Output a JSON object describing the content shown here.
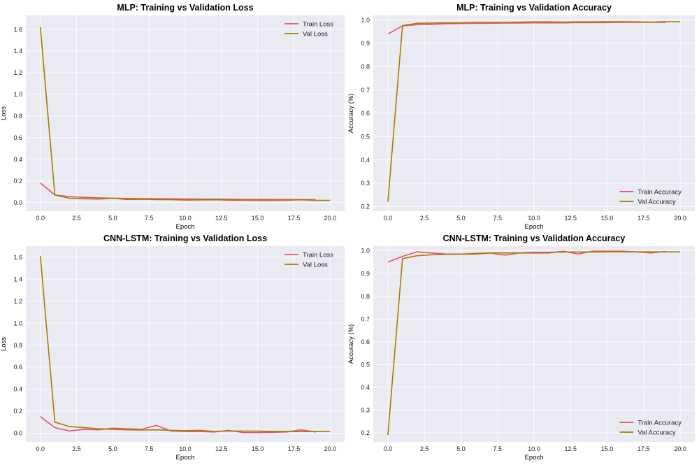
{
  "colors": {
    "background": "#ffffff",
    "panel": "#eaeaf2",
    "grid": "#ffffff",
    "train": "#e8526a",
    "val": "#a67c00"
  },
  "chart_data": [
    {
      "type": "line",
      "title": "MLP: Training vs Validation Loss",
      "xlabel": "Epoch",
      "ylabel": "Loss",
      "xlim": [
        -1,
        21
      ],
      "ylim": [
        -0.08,
        1.73
      ],
      "xticks": [
        0.0,
        2.5,
        5.0,
        7.5,
        10.0,
        12.5,
        15.0,
        17.5,
        20.0
      ],
      "xtick_labels": [
        "0.0",
        "2.5",
        "5.0",
        "7.5",
        "10.0",
        "12.5",
        "15.0",
        "17.5",
        "20.0"
      ],
      "yticks": [
        0.0,
        0.2,
        0.4,
        0.6,
        0.8,
        1.0,
        1.2,
        1.4,
        1.6
      ],
      "ytick_labels": [
        "0.0",
        "0.2",
        "0.4",
        "0.6",
        "0.8",
        "1.0",
        "1.2",
        "1.4",
        "1.6"
      ],
      "legend": "top-right",
      "grid": true,
      "series": [
        {
          "name": "Train Loss",
          "color_key": "train",
          "x": [
            0,
            1,
            2,
            3,
            4,
            5,
            6,
            7,
            8,
            9,
            10,
            11,
            12,
            13,
            14,
            15,
            16,
            17,
            18,
            19
          ],
          "values": [
            0.18,
            0.07,
            0.055,
            0.048,
            0.043,
            0.04,
            0.038,
            0.036,
            0.035,
            0.034,
            0.033,
            0.032,
            0.031,
            0.03,
            0.029,
            0.029,
            0.028,
            0.028,
            0.027,
            0.027
          ]
        },
        {
          "name": "Val Loss",
          "color_key": "val",
          "x": [
            0,
            1,
            2,
            3,
            4,
            5,
            6,
            7,
            8,
            9,
            10,
            11,
            12,
            13,
            14,
            15,
            16,
            17,
            18,
            19,
            20
          ],
          "values": [
            1.62,
            0.07,
            0.04,
            0.035,
            0.032,
            0.04,
            0.028,
            0.03,
            0.027,
            0.026,
            0.023,
            0.024,
            0.025,
            0.022,
            0.021,
            0.02,
            0.02,
            0.021,
            0.025,
            0.02,
            0.02
          ]
        }
      ]
    },
    {
      "type": "line",
      "title": "MLP: Training vs Validation Accuracy",
      "xlabel": "Epoch",
      "ylabel": "Accuracy (%)",
      "xlim": [
        -1,
        21
      ],
      "ylim": [
        0.18,
        1.02
      ],
      "xticks": [
        0.0,
        2.5,
        5.0,
        7.5,
        10.0,
        12.5,
        15.0,
        17.5,
        20.0
      ],
      "xtick_labels": [
        "0.0",
        "2.5",
        "5.0",
        "7.5",
        "10.0",
        "12.5",
        "15.0",
        "17.5",
        "20.0"
      ],
      "yticks": [
        0.2,
        0.3,
        0.4,
        0.5,
        0.6,
        0.7,
        0.8,
        0.9,
        1.0
      ],
      "ytick_labels": [
        "0.2",
        "0.3",
        "0.4",
        "0.5",
        "0.6",
        "0.7",
        "0.8",
        "0.9",
        "1.0"
      ],
      "legend": "bottom-right",
      "grid": true,
      "series": [
        {
          "name": "Train Accuracy",
          "color_key": "train",
          "x": [
            0,
            1,
            2,
            3,
            4,
            5,
            6,
            7,
            8,
            9,
            10,
            11,
            12,
            13,
            14,
            15,
            16,
            17,
            18,
            19
          ],
          "values": [
            0.94,
            0.975,
            0.98,
            0.982,
            0.984,
            0.985,
            0.986,
            0.986,
            0.987,
            0.987,
            0.988,
            0.988,
            0.988,
            0.989,
            0.989,
            0.989,
            0.99,
            0.99,
            0.99,
            0.99
          ]
        },
        {
          "name": "Val Accuracy",
          "color_key": "val",
          "x": [
            0,
            1,
            2,
            3,
            4,
            5,
            6,
            7,
            8,
            9,
            10,
            11,
            12,
            13,
            14,
            15,
            16,
            17,
            18,
            19,
            20
          ],
          "values": [
            0.22,
            0.976,
            0.986,
            0.987,
            0.988,
            0.988,
            0.99,
            0.99,
            0.99,
            0.991,
            0.992,
            0.992,
            0.991,
            0.992,
            0.992,
            0.993,
            0.993,
            0.992,
            0.991,
            0.993,
            0.993
          ]
        }
      ]
    },
    {
      "type": "line",
      "title": "CNN-LSTM: Training vs Validation Loss",
      "xlabel": "Epoch",
      "ylabel": "Loss",
      "xlim": [
        -1,
        21
      ],
      "ylim": [
        -0.08,
        1.7
      ],
      "xticks": [
        0.0,
        2.5,
        5.0,
        7.5,
        10.0,
        12.5,
        15.0,
        17.5,
        20.0
      ],
      "xtick_labels": [
        "0.0",
        "2.5",
        "5.0",
        "7.5",
        "10.0",
        "12.5",
        "15.0",
        "17.5",
        "20.0"
      ],
      "yticks": [
        0.0,
        0.2,
        0.4,
        0.6,
        0.8,
        1.0,
        1.2,
        1.4,
        1.6
      ],
      "ytick_labels": [
        "0.0",
        "0.2",
        "0.4",
        "0.6",
        "0.8",
        "1.0",
        "1.2",
        "1.4",
        "1.6"
      ],
      "legend": "top-right",
      "grid": true,
      "series": [
        {
          "name": "Train Loss",
          "color_key": "train",
          "x": [
            0,
            1,
            2,
            3,
            4,
            5,
            6,
            7,
            8,
            9,
            10,
            11,
            12,
            13,
            14,
            15,
            16,
            17,
            18,
            19
          ],
          "values": [
            0.15,
            0.05,
            0.02,
            0.035,
            0.03,
            0.045,
            0.04,
            0.035,
            0.07,
            0.02,
            0.015,
            0.015,
            0.01,
            0.025,
            0.005,
            0.005,
            0.008,
            0.01,
            0.03,
            0.01
          ]
        },
        {
          "name": "Val Loss",
          "color_key": "val",
          "x": [
            0,
            1,
            2,
            3,
            4,
            5,
            6,
            7,
            8,
            9,
            10,
            11,
            12,
            13,
            14,
            15,
            16,
            17,
            18,
            19,
            20
          ],
          "values": [
            1.61,
            0.1,
            0.06,
            0.05,
            0.04,
            0.035,
            0.03,
            0.028,
            0.03,
            0.025,
            0.022,
            0.025,
            0.015,
            0.02,
            0.018,
            0.018,
            0.016,
            0.015,
            0.014,
            0.015,
            0.015
          ]
        }
      ]
    },
    {
      "type": "line",
      "title": "CNN-LSTM: Training vs Validation Accuracy",
      "xlabel": "Epoch",
      "ylabel": "Accuracy (%)",
      "xlim": [
        -1,
        21
      ],
      "ylim": [
        0.16,
        1.02
      ],
      "xticks": [
        0.0,
        2.5,
        5.0,
        7.5,
        10.0,
        12.5,
        15.0,
        17.5,
        20.0
      ],
      "xtick_labels": [
        "0.0",
        "2.5",
        "5.0",
        "7.5",
        "10.0",
        "12.5",
        "15.0",
        "17.5",
        "20.0"
      ],
      "yticks": [
        0.2,
        0.3,
        0.4,
        0.5,
        0.6,
        0.7,
        0.8,
        0.9,
        1.0
      ],
      "ytick_labels": [
        "0.2",
        "0.3",
        "0.4",
        "0.5",
        "0.6",
        "0.7",
        "0.8",
        "0.9",
        "1.0"
      ],
      "legend": "bottom-right",
      "grid": true,
      "series": [
        {
          "name": "Train Accuracy",
          "color_key": "train",
          "x": [
            0,
            1,
            2,
            3,
            4,
            5,
            6,
            7,
            8,
            9,
            10,
            11,
            12,
            13,
            14,
            15,
            16,
            17,
            18,
            19
          ],
          "values": [
            0.95,
            0.975,
            0.995,
            0.99,
            0.985,
            0.985,
            0.985,
            0.99,
            0.98,
            0.99,
            0.99,
            0.99,
            0.998,
            0.985,
            0.998,
            0.998,
            0.998,
            0.995,
            0.99,
            0.997
          ]
        },
        {
          "name": "Val Accuracy",
          "color_key": "val",
          "x": [
            0,
            1,
            2,
            3,
            4,
            5,
            6,
            7,
            8,
            9,
            10,
            11,
            12,
            13,
            14,
            15,
            16,
            17,
            18,
            19,
            20
          ],
          "values": [
            0.19,
            0.965,
            0.978,
            0.982,
            0.984,
            0.985,
            0.988,
            0.99,
            0.99,
            0.99,
            0.993,
            0.993,
            0.994,
            0.994,
            0.994,
            0.995,
            0.995,
            0.995,
            0.995,
            0.995,
            0.995
          ]
        }
      ]
    }
  ]
}
